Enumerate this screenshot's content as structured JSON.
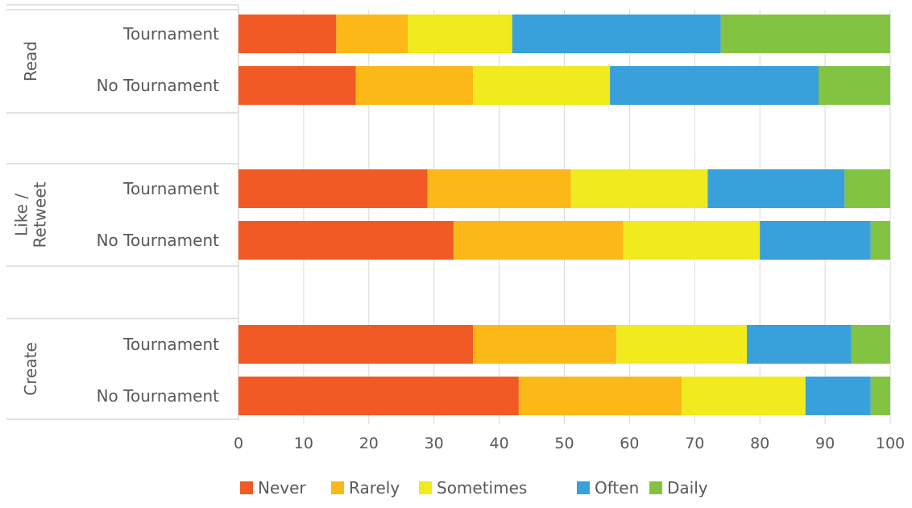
{
  "chart_data": {
    "type": "bar",
    "orientation": "horizontal",
    "stacked": true,
    "xlim": [
      0,
      100
    ],
    "x_ticks": [
      "0",
      "10",
      "20",
      "30",
      "40",
      "50",
      "60",
      "70",
      "80",
      "90",
      "100"
    ],
    "grid": true,
    "legend_position": "bottom",
    "groups": [
      {
        "label_lines": [
          "Read"
        ],
        "rows": [
          {
            "label": "Tournament",
            "values": [
              15,
              11,
              16,
              32,
              26
            ]
          },
          {
            "label": "No Tournament",
            "values": [
              18,
              18,
              21,
              32,
              11
            ]
          }
        ]
      },
      {
        "label_lines": [
          "Like /",
          "Retweet"
        ],
        "rows": [
          {
            "label": "Tournament",
            "values": [
              29,
              22,
              21,
              21,
              7
            ]
          },
          {
            "label": "No Tournament",
            "values": [
              33,
              26,
              21,
              17,
              3
            ]
          }
        ]
      },
      {
        "label_lines": [
          "Create"
        ],
        "rows": [
          {
            "label": "Tournament",
            "values": [
              36,
              22,
              20,
              16,
              6
            ]
          },
          {
            "label": "No Tournament",
            "values": [
              43,
              25,
              19,
              10,
              3
            ]
          }
        ]
      }
    ],
    "series": [
      {
        "name": "Never",
        "color": "#F15A24"
      },
      {
        "name": "Rarely",
        "color": "#FBB817"
      },
      {
        "name": "Sometimes",
        "color": "#F1EA1C"
      },
      {
        "name": "Often",
        "color": "#38A0DB"
      },
      {
        "name": "Daily",
        "color": "#82C341"
      }
    ]
  }
}
